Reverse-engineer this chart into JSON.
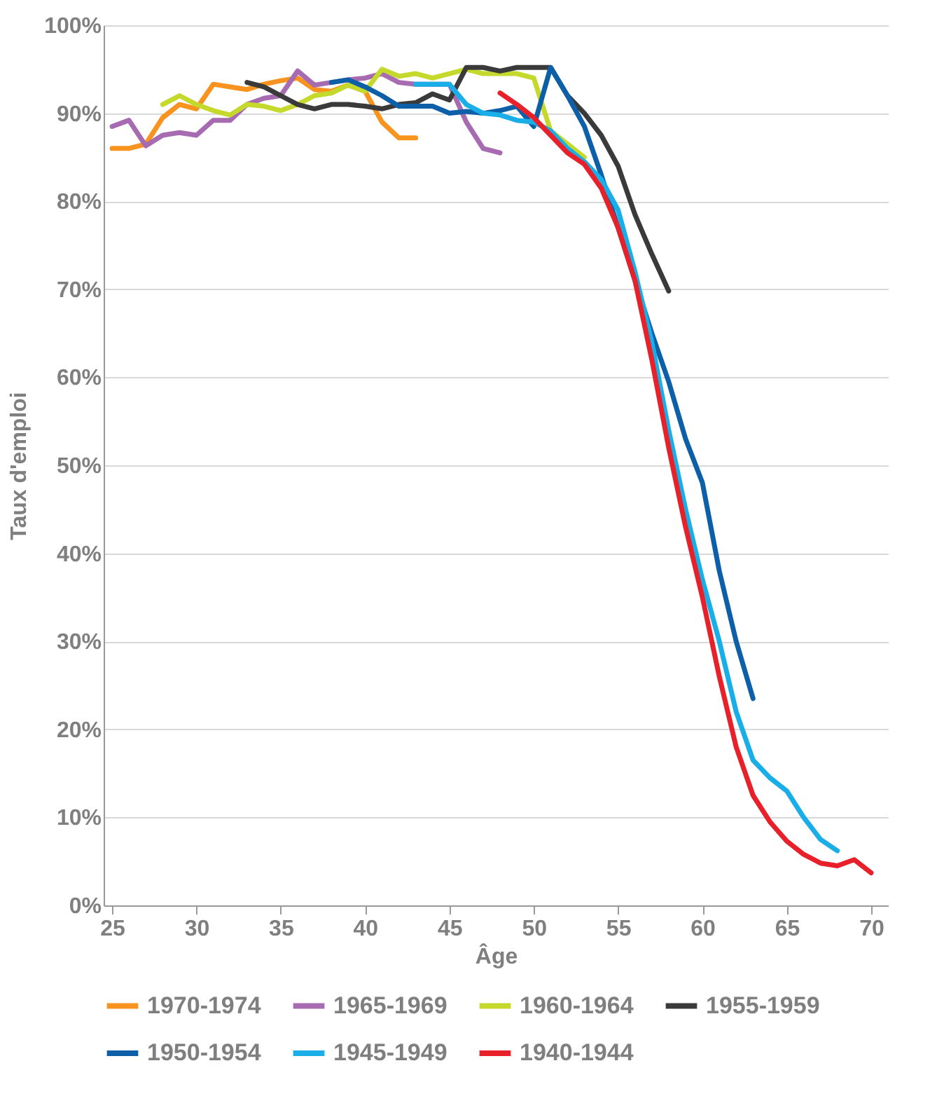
{
  "chart_data": {
    "type": "line",
    "xlabel": "Âge",
    "ylabel": "Taux d'emploi",
    "xlim": [
      24.5,
      71
    ],
    "xticks": [
      25,
      30,
      35,
      40,
      45,
      50,
      55,
      60,
      65,
      70
    ],
    "ylim": [
      0,
      100
    ],
    "yticks": [
      {
        "value": 0,
        "label": "0%"
      },
      {
        "value": 10,
        "label": "10%"
      },
      {
        "value": 20,
        "label": "20%"
      },
      {
        "value": 30,
        "label": "30%"
      },
      {
        "value": 40,
        "label": "40%"
      },
      {
        "value": 50,
        "label": "50%"
      },
      {
        "value": 60,
        "label": "60%"
      },
      {
        "value": 70,
        "label": "70%"
      },
      {
        "value": 80,
        "label": "80%"
      },
      {
        "value": 90,
        "label": "90%"
      },
      {
        "value": 100,
        "label": "100%"
      }
    ],
    "grid": "y",
    "legend": "bottom",
    "line_style": "solid",
    "marker": "none",
    "series": [
      {
        "name": "1970-1974",
        "color": "#f7931e",
        "x": [
          25,
          26,
          27,
          28,
          29,
          30,
          31,
          32,
          33,
          34,
          35,
          36,
          37,
          38,
          39,
          40,
          41,
          42,
          43
        ],
        "values": [
          86,
          86,
          86.5,
          89.5,
          91,
          90.5,
          93.3,
          93,
          92.7,
          93.3,
          93.7,
          94,
          92.7,
          92.5,
          93.2,
          92.5,
          89,
          87.2,
          87.2
        ]
      },
      {
        "name": "1965-1969",
        "color": "#a66bb0",
        "x": [
          25,
          26,
          27,
          28,
          29,
          30,
          31,
          32,
          33,
          34,
          35,
          36,
          37,
          38,
          39,
          40,
          41,
          42,
          43,
          44,
          45,
          46,
          47,
          48
        ],
        "values": [
          88.5,
          89.2,
          86.3,
          87.5,
          87.8,
          87.5,
          89.2,
          89.2,
          91,
          91.7,
          92,
          94.8,
          93.2,
          93.5,
          93.8,
          94,
          94.5,
          93.5,
          93.3,
          93.3,
          93.3,
          89,
          86,
          85.5
        ]
      },
      {
        "name": "1960-1964",
        "color": "#c5d92d",
        "x": [
          28,
          29,
          30,
          31,
          32,
          33,
          34,
          35,
          36,
          37,
          38,
          39,
          40,
          41,
          42,
          43,
          44,
          45,
          46,
          47,
          48,
          49,
          50,
          51,
          52,
          53
        ],
        "values": [
          91,
          92,
          91,
          90.3,
          89.8,
          91,
          90.8,
          90.3,
          91,
          92,
          92.3,
          93.2,
          92.5,
          95,
          94.2,
          94.5,
          94,
          94.5,
          95,
          94.5,
          94.5,
          94.5,
          94,
          88,
          86.5,
          85
        ]
      },
      {
        "name": "1955-1959",
        "color": "#3a3a3a",
        "x": [
          33,
          34,
          35,
          36,
          37,
          38,
          39,
          40,
          41,
          42,
          43,
          44,
          45,
          46,
          47,
          48,
          49,
          50,
          51,
          52,
          53,
          54,
          55,
          56,
          57,
          58
        ],
        "values": [
          93.5,
          93,
          92,
          91,
          90.5,
          91,
          91,
          90.8,
          90.5,
          91,
          91.2,
          92.2,
          91.5,
          95.2,
          95.2,
          94.8,
          95.2,
          95.2,
          95.2,
          92,
          90,
          87.5,
          84,
          78.5,
          74,
          69.8
        ]
      },
      {
        "name": "1950-1954",
        "color": "#0d5fa8",
        "x": [
          38,
          39,
          40,
          41,
          42,
          43,
          44,
          45,
          46,
          47,
          48,
          49,
          50,
          51,
          52,
          53,
          54,
          55,
          56,
          57,
          58,
          59,
          60,
          61,
          62,
          63
        ],
        "values": [
          93.5,
          93.8,
          93,
          92,
          90.8,
          90.8,
          90.8,
          90,
          90.2,
          90,
          90.3,
          90.8,
          88.5,
          95.2,
          92,
          88.5,
          83,
          77,
          71,
          65,
          59.5,
          53,
          48,
          38,
          30,
          23.5
        ]
      },
      {
        "name": "1945-1949",
        "color": "#19aee8",
        "x": [
          43,
          44,
          45,
          46,
          47,
          48,
          49,
          50,
          51,
          52,
          53,
          54,
          55,
          56,
          57,
          58,
          59,
          60,
          61,
          62,
          63,
          64,
          65,
          66,
          67,
          68
        ],
        "values": [
          93.3,
          93.3,
          93.3,
          91,
          90,
          89.8,
          89.2,
          89,
          88,
          86,
          84.5,
          82.5,
          79,
          72,
          64,
          54,
          45,
          37,
          30,
          22,
          16.5,
          14.5,
          13,
          10,
          7.5,
          6.2
        ]
      },
      {
        "name": "1940-1944",
        "color": "#e8202a",
        "x": [
          48,
          49,
          50,
          51,
          52,
          53,
          54,
          55,
          56,
          57,
          58,
          59,
          60,
          61,
          62,
          63,
          64,
          65,
          66,
          67,
          68,
          69,
          70
        ],
        "values": [
          92.3,
          91,
          89.5,
          87.5,
          85.5,
          84.2,
          81.5,
          77,
          71,
          62,
          52,
          43,
          35,
          26,
          18,
          12.5,
          9.5,
          7.3,
          5.8,
          4.8,
          4.5,
          5.2,
          3.7
        ]
      }
    ]
  }
}
